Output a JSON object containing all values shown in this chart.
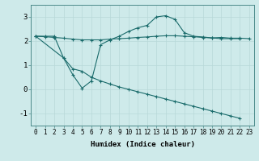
{
  "xlabel": "Humidex (Indice chaleur)",
  "background_color": "#ceeaea",
  "grid_color": "#b8d8d8",
  "line_color": "#1a6b6b",
  "xlim": [
    -0.5,
    23.5
  ],
  "ylim": [
    -1.5,
    3.5
  ],
  "yticks": [
    -1,
    0,
    1,
    2,
    3
  ],
  "xtick_labels": [
    "0",
    "1",
    "2",
    "3",
    "4",
    "5",
    "6",
    "7",
    "8",
    "9",
    "10",
    "11",
    "12",
    "13",
    "14",
    "15",
    "16",
    "17",
    "18",
    "19",
    "20",
    "21",
    "22",
    "23"
  ],
  "xtick_positions": [
    0,
    1,
    2,
    3,
    4,
    5,
    6,
    7,
    8,
    9,
    10,
    11,
    12,
    13,
    14,
    15,
    16,
    17,
    18,
    19,
    20,
    21,
    22,
    23
  ],
  "series1_x": [
    0,
    1,
    2,
    3,
    4,
    5,
    6,
    7,
    8,
    9,
    10,
    11,
    12,
    13,
    14,
    15,
    16,
    17,
    18,
    19,
    20,
    21,
    22,
    23
  ],
  "series1_y": [
    2.2,
    2.18,
    2.15,
    2.12,
    2.08,
    2.05,
    2.05,
    2.05,
    2.08,
    2.1,
    2.12,
    2.15,
    2.17,
    2.2,
    2.22,
    2.22,
    2.2,
    2.18,
    2.15,
    2.13,
    2.15,
    2.12,
    2.12,
    2.1
  ],
  "series2_x": [
    0,
    1,
    2,
    3,
    4,
    5,
    6,
    7,
    8,
    9,
    10,
    11,
    12,
    13,
    14,
    15,
    16,
    17,
    18,
    19,
    20,
    21,
    22
  ],
  "series2_y": [
    2.2,
    2.2,
    2.2,
    1.3,
    0.6,
    0.05,
    0.35,
    1.85,
    2.05,
    2.2,
    2.4,
    2.55,
    2.65,
    3.0,
    3.05,
    2.9,
    2.35,
    2.2,
    2.17,
    2.13,
    2.1,
    2.1,
    2.1
  ],
  "series3_x": [
    0,
    3,
    4,
    5,
    6,
    7,
    8,
    9,
    10,
    11,
    12,
    13,
    14,
    15,
    16,
    17,
    18,
    19,
    20,
    21,
    22
  ],
  "series3_y": [
    2.2,
    1.3,
    0.85,
    0.75,
    0.5,
    0.35,
    0.22,
    0.1,
    0.0,
    -0.1,
    -0.2,
    -0.3,
    -0.4,
    -0.5,
    -0.6,
    -0.7,
    -0.8,
    -0.9,
    -1.0,
    -1.1,
    -1.2
  ]
}
